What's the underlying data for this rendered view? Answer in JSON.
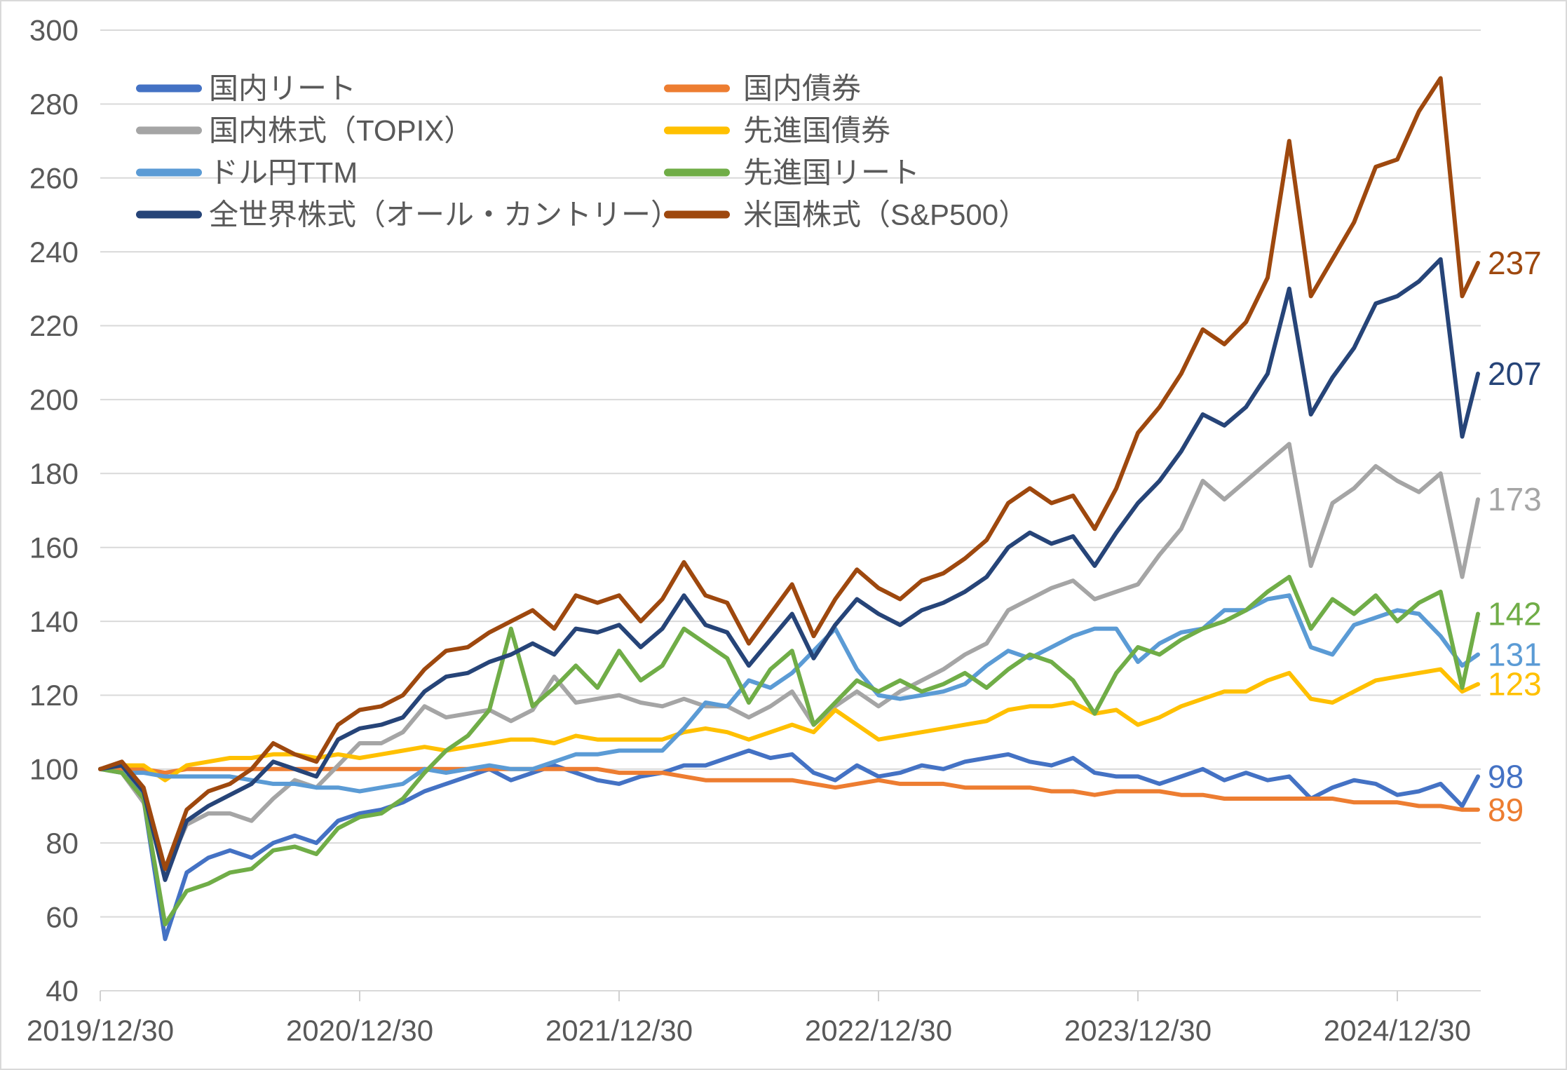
{
  "chart_data": {
    "type": "line",
    "title": "",
    "x_axis": {
      "start_label": "2019/12/30",
      "tick_labels": [
        "2019/12/30",
        "2020/12/30",
        "2021/12/30",
        "2022/12/30",
        "2023/12/30",
        "2024/12/30"
      ],
      "point_interval": "monthly"
    },
    "y_axis": {
      "min": 40,
      "max": 300,
      "ticks": [
        300,
        280,
        260,
        240,
        220,
        200,
        180,
        160,
        140,
        120,
        100,
        80,
        60,
        40
      ]
    },
    "grid": "horizontal-only",
    "legend_position": "top-left-two-columns",
    "colors": {
      "grid": "#D9D9D9",
      "axis_text": "#595959",
      "background": "#FFFFFF"
    },
    "series": [
      {
        "key": "domestic-reit",
        "name": "国内リート",
        "color": "#4472C4",
        "end_label": "98",
        "values": [
          100,
          101,
          92,
          54,
          72,
          76,
          78,
          76,
          80,
          82,
          80,
          86,
          88,
          89,
          91,
          94,
          96,
          98,
          100,
          97,
          99,
          101,
          99,
          97,
          96,
          98,
          99,
          101,
          101,
          103,
          105,
          103,
          104,
          99,
          97,
          101,
          98,
          99,
          101,
          100,
          102,
          103,
          104,
          102,
          101,
          103,
          99,
          98,
          98,
          96,
          98,
          100,
          97,
          99,
          97,
          98,
          92,
          95,
          97,
          96,
          93,
          94,
          96,
          90,
          98
        ]
      },
      {
        "key": "domestic-bond",
        "name": "国内債券",
        "color": "#ED7D31",
        "end_label": "89",
        "values": [
          100,
          100,
          100,
          99,
          100,
          100,
          100,
          100,
          100,
          100,
          100,
          100,
          100,
          100,
          100,
          100,
          100,
          100,
          100,
          100,
          100,
          100,
          100,
          100,
          99,
          99,
          99,
          98,
          97,
          97,
          97,
          97,
          97,
          96,
          95,
          96,
          97,
          96,
          96,
          96,
          95,
          95,
          95,
          95,
          94,
          94,
          93,
          94,
          94,
          94,
          93,
          93,
          92,
          92,
          92,
          92,
          92,
          92,
          91,
          91,
          91,
          90,
          90,
          89,
          89
        ]
      },
      {
        "key": "topix",
        "name": "国内株式（TOPIX）",
        "color": "#A5A5A5",
        "end_label": "173",
        "values": [
          100,
          99,
          91,
          72,
          85,
          88,
          88,
          86,
          92,
          97,
          95,
          101,
          107,
          107,
          110,
          117,
          114,
          115,
          116,
          113,
          116,
          125,
          118,
          119,
          120,
          118,
          117,
          119,
          117,
          117,
          114,
          117,
          121,
          112,
          117,
          121,
          117,
          121,
          124,
          127,
          131,
          134,
          143,
          146,
          149,
          151,
          146,
          148,
          150,
          158,
          165,
          178,
          173,
          178,
          183,
          188,
          155,
          172,
          176,
          182,
          178,
          175,
          180,
          152,
          173
        ]
      },
      {
        "key": "dm-bond",
        "name": "先進国債券",
        "color": "#FFC000",
        "end_label": "123",
        "values": [
          100,
          101,
          101,
          97,
          101,
          102,
          103,
          103,
          104,
          104,
          103,
          104,
          103,
          104,
          105,
          106,
          105,
          106,
          107,
          108,
          108,
          107,
          109,
          108,
          108,
          108,
          108,
          110,
          111,
          110,
          108,
          110,
          112,
          110,
          116,
          112,
          108,
          109,
          110,
          111,
          112,
          113,
          116,
          117,
          117,
          118,
          115,
          116,
          112,
          114,
          117,
          119,
          121,
          121,
          124,
          126,
          119,
          118,
          121,
          124,
          125,
          126,
          127,
          121,
          123
        ]
      },
      {
        "key": "usdjpy-ttm",
        "name": "ドル円TTM",
        "color": "#5B9BD5",
        "end_label": "131",
        "values": [
          100,
          99,
          99,
          98,
          98,
          98,
          98,
          97,
          96,
          96,
          95,
          95,
          94,
          95,
          96,
          100,
          99,
          100,
          101,
          100,
          100,
          102,
          104,
          104,
          105,
          105,
          105,
          111,
          118,
          117,
          124,
          122,
          126,
          132,
          138,
          127,
          120,
          119,
          120,
          121,
          123,
          128,
          132,
          130,
          133,
          136,
          138,
          138,
          129,
          134,
          137,
          138,
          143,
          143,
          146,
          147,
          133,
          131,
          139,
          141,
          143,
          142,
          136,
          128,
          131
        ]
      },
      {
        "key": "dm-reit",
        "name": "先進国リート",
        "color": "#70AD47",
        "end_label": "142",
        "values": [
          100,
          99,
          92,
          58,
          67,
          69,
          72,
          73,
          78,
          79,
          77,
          84,
          87,
          88,
          92,
          99,
          105,
          109,
          116,
          138,
          117,
          122,
          128,
          122,
          132,
          124,
          128,
          138,
          134,
          130,
          118,
          127,
          132,
          112,
          118,
          124,
          121,
          124,
          121,
          123,
          126,
          122,
          127,
          131,
          129,
          124,
          115,
          126,
          133,
          131,
          135,
          138,
          140,
          143,
          148,
          152,
          138,
          146,
          142,
          147,
          140,
          145,
          148,
          122,
          142
        ]
      },
      {
        "key": "acwi",
        "name": "全世界株式（オール・カントリー）",
        "color": "#264478",
        "end_label": "207",
        "values": [
          100,
          101,
          94,
          70,
          86,
          90,
          93,
          96,
          102,
          100,
          98,
          108,
          111,
          112,
          114,
          121,
          125,
          126,
          129,
          131,
          134,
          131,
          138,
          137,
          139,
          133,
          138,
          147,
          139,
          137,
          128,
          135,
          142,
          130,
          139,
          146,
          142,
          139,
          143,
          145,
          148,
          152,
          160,
          164,
          161,
          163,
          155,
          164,
          172,
          178,
          186,
          196,
          193,
          198,
          207,
          230,
          196,
          206,
          214,
          226,
          228,
          232,
          238,
          190,
          207
        ]
      },
      {
        "key": "sp500",
        "name": "米国株式（S&P500）",
        "color": "#9E480E",
        "end_label": "237",
        "values": [
          100,
          102,
          95,
          73,
          89,
          94,
          96,
          100,
          107,
          104,
          102,
          112,
          116,
          117,
          120,
          127,
          132,
          133,
          137,
          140,
          143,
          138,
          147,
          145,
          147,
          140,
          146,
          156,
          147,
          145,
          134,
          142,
          150,
          136,
          146,
          154,
          149,
          146,
          151,
          153,
          157,
          162,
          172,
          176,
          172,
          174,
          165,
          176,
          191,
          198,
          207,
          219,
          215,
          221,
          233,
          270,
          228,
          238,
          248,
          263,
          265,
          278,
          287,
          228,
          237
        ]
      }
    ]
  }
}
